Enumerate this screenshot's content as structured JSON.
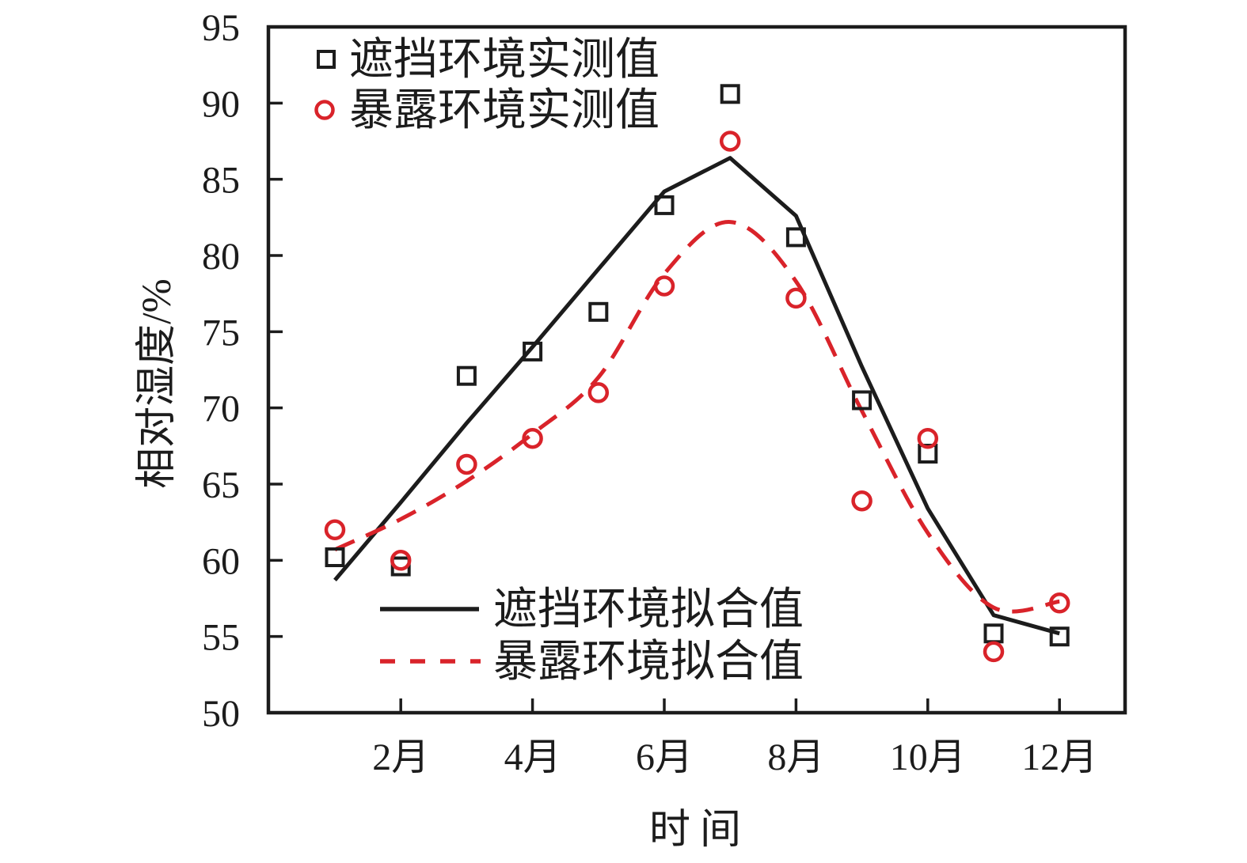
{
  "chart_data": {
    "type": "line",
    "xlabel": "时间",
    "ylabel": "相对湿度/%",
    "xlim_months": [
      1,
      12
    ],
    "ylim": [
      50,
      95
    ],
    "yticks": [
      50,
      55,
      60,
      65,
      70,
      75,
      80,
      85,
      90,
      95
    ],
    "xtick_months": [
      2,
      4,
      6,
      8,
      10,
      12
    ],
    "xtick_labels": [
      "2月",
      "4月",
      "6月",
      "8月",
      "10月",
      "12月"
    ],
    "x_months": [
      1,
      2,
      3,
      4,
      5,
      6,
      7,
      8,
      9,
      10,
      11,
      12
    ],
    "colors": {
      "black": "#1c1c1c",
      "red": "#d9232a"
    },
    "grid": false,
    "legend_top_position": "upper-left-inside",
    "legend_bottom_position": "lower-center-inside",
    "series": [
      {
        "name": "遮挡环境实测值",
        "type": "scatter",
        "marker": "square",
        "color": "#1c1c1c",
        "values": [
          60.2,
          59.6,
          72.1,
          73.7,
          76.3,
          83.3,
          90.6,
          81.2,
          70.5,
          67.0,
          55.2,
          55.0
        ]
      },
      {
        "name": "暴露环境实测值",
        "type": "scatter",
        "marker": "circle",
        "color": "#d9232a",
        "values": [
          62.0,
          60.0,
          66.3,
          68.0,
          71.0,
          78.0,
          87.5,
          77.2,
          63.9,
          68.0,
          54.0,
          57.2
        ]
      },
      {
        "name": "遮挡环境拟合值",
        "type": "line",
        "style": "solid",
        "color": "#1c1c1c",
        "values": [
          58.7,
          63.8,
          69.0,
          74.0,
          79.1,
          84.2,
          86.4,
          82.6,
          72.7,
          63.4,
          56.4,
          55.2
        ]
      },
      {
        "name": "暴露环境拟合值",
        "type": "line",
        "style": "dashed",
        "color": "#d9232a",
        "values": [
          60.7,
          62.7,
          65.2,
          68.3,
          72.0,
          78.8,
          82.2,
          78.3,
          69.8,
          61.8,
          56.9,
          57.3
        ]
      }
    ]
  }
}
